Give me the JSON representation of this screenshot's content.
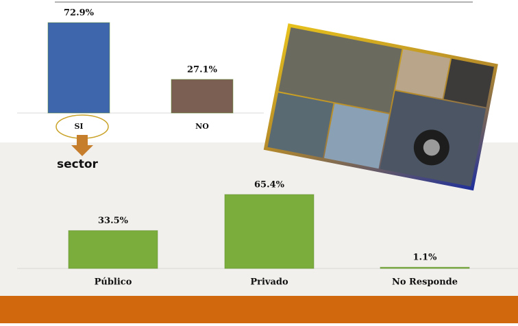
{
  "chart_data": [
    {
      "type": "bar",
      "categories": [
        "SI",
        "NO"
      ],
      "values": [
        72.9,
        27.1
      ],
      "value_labels": [
        "72.9%",
        "27.1%"
      ],
      "colors": [
        "#3d66ad",
        "#7b5f53"
      ]
    },
    {
      "type": "bar",
      "annotation": "sector",
      "categories": [
        "Público",
        "Privado",
        "No Responde"
      ],
      "values": [
        33.5,
        65.4,
        1.1
      ],
      "value_labels": [
        "33.5%",
        "65.4%",
        "1.1%"
      ],
      "colors": [
        "#7bad3c",
        "#7bad3c",
        "#7bad3c"
      ]
    }
  ]
}
